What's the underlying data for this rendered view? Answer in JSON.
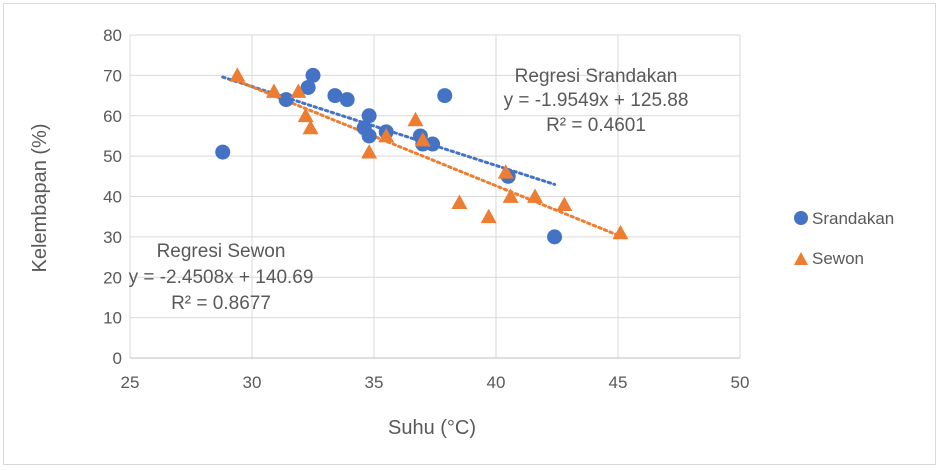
{
  "chart_data": {
    "type": "scatter",
    "xlabel": "Suhu (°C)",
    "ylabel": "Kelembapan (%)",
    "xlim": [
      25,
      50
    ],
    "ylim": [
      0,
      80
    ],
    "x_ticks": [
      25,
      30,
      35,
      40,
      45,
      50
    ],
    "y_ticks": [
      0,
      10,
      20,
      30,
      40,
      50,
      60,
      70,
      80
    ],
    "grid": "horizontal",
    "legend_position": "right",
    "series": [
      {
        "name": "Srandakan",
        "marker": "circle",
        "color": "#4472c4",
        "points": [
          [
            28.8,
            51
          ],
          [
            31.4,
            64
          ],
          [
            32.3,
            67
          ],
          [
            32.5,
            70
          ],
          [
            33.4,
            65
          ],
          [
            33.9,
            64
          ],
          [
            34.6,
            57
          ],
          [
            34.8,
            60
          ],
          [
            34.8,
            55
          ],
          [
            35.5,
            56
          ],
          [
            36.9,
            55
          ],
          [
            37.0,
            53
          ],
          [
            37.4,
            53
          ],
          [
            37.9,
            65
          ],
          [
            40.5,
            45
          ],
          [
            42.4,
            30
          ]
        ],
        "trendline": {
          "x_range": [
            28.8,
            42.4
          ],
          "equation": "y = -1.9549x + 125.88",
          "r2": "R² = 0.4601",
          "label": "Regresi Srandakan"
        }
      },
      {
        "name": "Sewon",
        "marker": "triangle",
        "color": "#ed7d31",
        "points": [
          [
            29.4,
            70
          ],
          [
            30.9,
            66
          ],
          [
            31.9,
            66
          ],
          [
            32.2,
            60
          ],
          [
            32.4,
            57
          ],
          [
            34.8,
            51
          ],
          [
            35.5,
            55
          ],
          [
            36.7,
            59
          ],
          [
            37.0,
            54
          ],
          [
            38.5,
            38.5
          ],
          [
            39.7,
            35
          ],
          [
            40.4,
            46
          ],
          [
            40.6,
            40
          ],
          [
            41.6,
            40
          ],
          [
            42.8,
            38
          ],
          [
            45.1,
            31
          ]
        ],
        "trendline": {
          "x_range": [
            29.4,
            45.1
          ],
          "equation": "y = -2.4508x + 140.69",
          "r2": "R² = 0.8677",
          "label": "Regresi Sewon"
        }
      }
    ]
  }
}
